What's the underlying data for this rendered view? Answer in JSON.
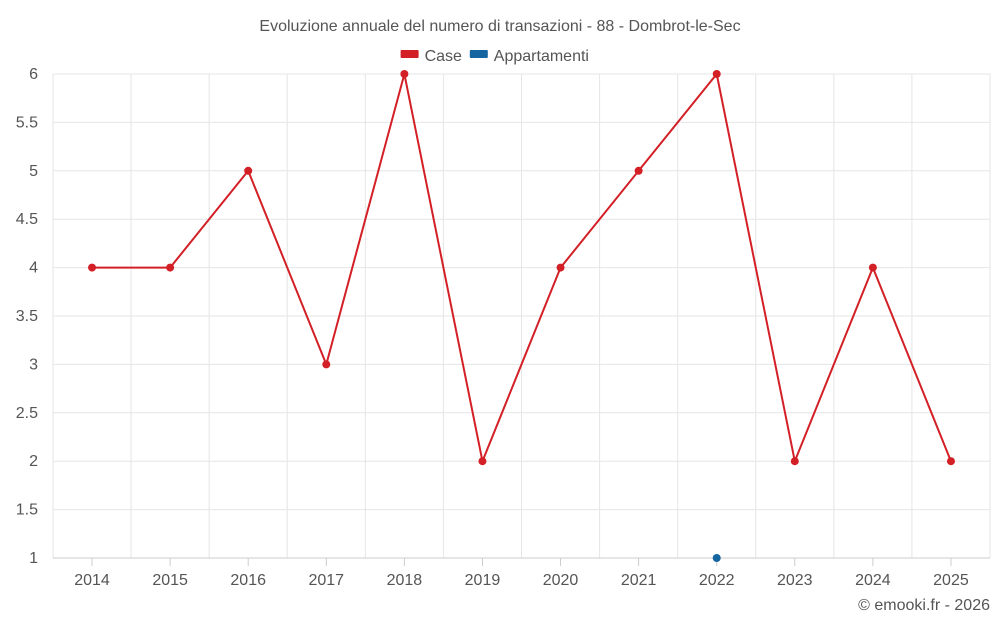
{
  "chart_data": {
    "type": "line",
    "title": "Evoluzione annuale del numero di transazioni - 88 - Dombrot-le-Sec",
    "xlabel": "",
    "ylabel": "",
    "categories": [
      "2014",
      "2015",
      "2016",
      "2017",
      "2018",
      "2019",
      "2020",
      "2021",
      "2022",
      "2023",
      "2024",
      "2025"
    ],
    "ylim": [
      1,
      6
    ],
    "yticks": [
      1,
      1.5,
      2,
      2.5,
      3,
      3.5,
      4,
      4.5,
      5,
      5.5,
      6
    ],
    "ytick_labels": [
      "1",
      "1.5",
      "2",
      "2.5",
      "3",
      "3.5",
      "4",
      "4.5",
      "5",
      "5.5",
      "6"
    ],
    "grid": true,
    "legend_position": "top-center",
    "series": [
      {
        "name": "Case",
        "color": "#d32026",
        "values": [
          4,
          4,
          5,
          3,
          6,
          2,
          4,
          5,
          6,
          2,
          4,
          2
        ]
      },
      {
        "name": "Appartamenti",
        "color": "#1565a0",
        "values": [
          null,
          null,
          null,
          null,
          null,
          null,
          null,
          null,
          1,
          null,
          null,
          null
        ]
      }
    ]
  },
  "footer": {
    "credit": "© emooki.fr - 2026"
  }
}
